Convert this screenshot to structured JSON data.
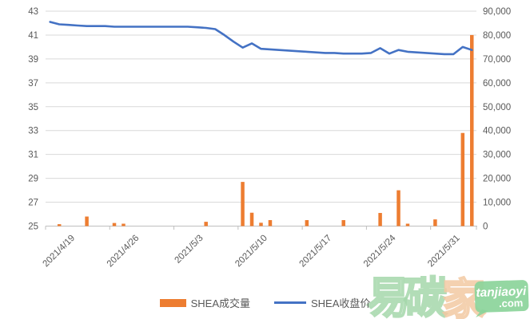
{
  "chart_data": {
    "type": "combo",
    "title": "",
    "categories": [
      "2021/4/19",
      "2021/4/20",
      "2021/4/21",
      "2021/4/22",
      "2021/4/23",
      "2021/4/24",
      "2021/4/25",
      "2021/4/26",
      "2021/4/27",
      "2021/4/28",
      "2021/4/29",
      "2021/4/30",
      "2021/5/1",
      "2021/5/2",
      "2021/5/3",
      "2021/5/4",
      "2021/5/5",
      "2021/5/6",
      "2021/5/7",
      "2021/5/8",
      "2021/5/9",
      "2021/5/10",
      "2021/5/11",
      "2021/5/12",
      "2021/5/13",
      "2021/5/14",
      "2021/5/15",
      "2021/5/16",
      "2021/5/17",
      "2021/5/18",
      "2021/5/19",
      "2021/5/20",
      "2021/5/21",
      "2021/5/22",
      "2021/5/23",
      "2021/5/24",
      "2021/5/25",
      "2021/5/26",
      "2021/5/27",
      "2021/5/28",
      "2021/5/29",
      "2021/5/30",
      "2021/5/31",
      "2021/6/1",
      "2021/6/2",
      "2021/6/3",
      "2021/6/4"
    ],
    "x_tick_labels": [
      "2021/4/19",
      "2021/4/26",
      "2021/5/3",
      "2021/5/10",
      "2021/5/17",
      "2021/5/24",
      "2021/5/31"
    ],
    "x_tick_interval": 7,
    "series": [
      {
        "name": "SHEA成交量",
        "type": "bar",
        "axis": "right",
        "color": "#ED7D31",
        "values": [
          0,
          800,
          0,
          0,
          4000,
          0,
          0,
          1300,
          1000,
          0,
          0,
          0,
          0,
          0,
          0,
          0,
          0,
          1800,
          0,
          0,
          0,
          18500,
          5600,
          1400,
          2500,
          0,
          0,
          0,
          2500,
          0,
          0,
          0,
          2500,
          0,
          0,
          0,
          5500,
          0,
          15000,
          1000,
          0,
          0,
          2800,
          0,
          0,
          39000,
          80000
        ]
      },
      {
        "name": "SHEA收盘价",
        "type": "line",
        "axis": "left",
        "color": "#4472C4",
        "values": [
          42.1,
          41.9,
          41.85,
          41.8,
          41.75,
          41.75,
          41.75,
          41.7,
          41.7,
          41.7,
          41.7,
          41.7,
          41.7,
          41.7,
          41.7,
          41.7,
          41.65,
          41.6,
          41.5,
          41.0,
          40.45,
          39.95,
          40.3,
          39.85,
          39.8,
          39.75,
          39.7,
          39.65,
          39.6,
          39.55,
          39.5,
          39.5,
          39.45,
          39.45,
          39.45,
          39.5,
          39.9,
          39.45,
          39.75,
          39.6,
          39.55,
          39.5,
          39.45,
          39.4,
          39.4,
          40.0,
          39.75
        ]
      }
    ],
    "left_axis": {
      "min": 25,
      "max": 43,
      "step": 2,
      "tick_labels": [
        "25",
        "27",
        "29",
        "31",
        "33",
        "35",
        "37",
        "39",
        "41",
        "43"
      ]
    },
    "right_axis": {
      "min": 0,
      "max": 90000,
      "step": 10000,
      "tick_labels": [
        "0",
        "10,000",
        "20,000",
        "30,000",
        "40,000",
        "50,000",
        "60,000",
        "70,000",
        "80,000",
        "90,000"
      ]
    },
    "grid": true,
    "legend_position": "bottom"
  },
  "legend": {
    "volume_label": "SHEA成交量",
    "price_label": "SHEA收盘价",
    "volume_color": "#ED7D31",
    "price_color": "#4472C4"
  },
  "watermark": {
    "char1": "易",
    "char2": "碳",
    "char3": "家",
    "badge_line1": "tanjiaoyi",
    "badge_line2": ".com",
    "green": "#8BD49A",
    "green_stroke": "#A5D8AB",
    "peach_stroke": "#F3C9A3",
    "badge_text_color": "#FFFFFF"
  },
  "style_colors": {
    "axis_label": "#595959",
    "gridline": "#D9D9D9",
    "axis_line": "#BFBFBF",
    "background": "#FFFFFF"
  }
}
